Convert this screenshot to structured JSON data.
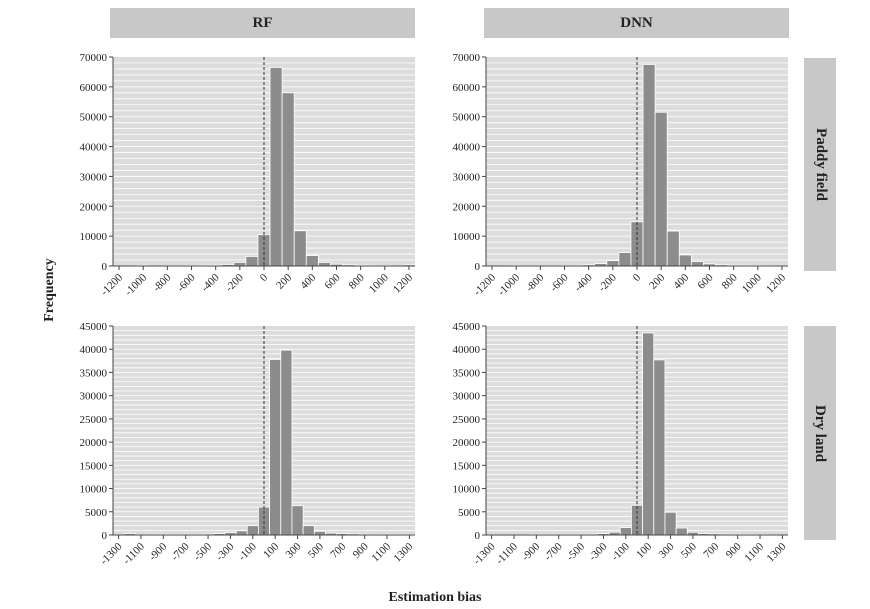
{
  "figure": {
    "ylabel": "Frequency",
    "xlabel": "Estimation bias",
    "col_labels": [
      "RF",
      "DNN"
    ],
    "row_labels": [
      "Paddy field",
      "Dry land"
    ]
  },
  "colors": {
    "bar": "#8c8c8c",
    "bar_edge": "#ffffff",
    "plot_bg": "#dcdcdc",
    "grid": "#ffffff",
    "strip": "#c8c8c8"
  },
  "chart_data": [
    {
      "type": "bar",
      "panel": "RF / Paddy field",
      "xlabel": "",
      "ylabel": "",
      "ylim": [
        0,
        70000
      ],
      "yticks": [
        0,
        10000,
        20000,
        30000,
        40000,
        50000,
        60000,
        70000
      ],
      "xlim": [
        -1250,
        1250
      ],
      "xticks": [
        -1200,
        -1000,
        -800,
        -600,
        -400,
        -200,
        0,
        200,
        400,
        600,
        800,
        1000,
        1200
      ],
      "bin_width": 100,
      "bins": [
        -1250,
        -1150,
        -1050,
        -950,
        -850,
        -750,
        -650,
        -550,
        -450,
        -350,
        -250,
        -150,
        -50,
        50,
        150,
        250,
        350,
        450,
        550,
        650,
        750,
        850,
        950,
        1050,
        1150
      ],
      "values": [
        50,
        100,
        250,
        100,
        150,
        150,
        200,
        250,
        300,
        500,
        1200,
        3200,
        10500,
        66500,
        58000,
        11800,
        3500,
        1200,
        600,
        400,
        300,
        250,
        200,
        100,
        400
      ],
      "reference_line_x": 0,
      "grid": true
    },
    {
      "type": "bar",
      "panel": "DNN / Paddy field",
      "xlabel": "",
      "ylabel": "",
      "ylim": [
        0,
        70000
      ],
      "yticks": [
        0,
        10000,
        20000,
        30000,
        40000,
        50000,
        60000,
        70000
      ],
      "xlim": [
        -1250,
        1250
      ],
      "xticks": [
        -1200,
        -1000,
        -800,
        -600,
        -400,
        -200,
        0,
        200,
        400,
        600,
        800,
        1000,
        1200
      ],
      "bin_width": 100,
      "bins": [
        -1250,
        -1150,
        -1050,
        -950,
        -850,
        -750,
        -650,
        -550,
        -450,
        -350,
        -250,
        -150,
        -50,
        50,
        150,
        250,
        350,
        450,
        550,
        650,
        750,
        850,
        950,
        1050,
        1150
      ],
      "values": [
        50,
        100,
        200,
        150,
        150,
        150,
        200,
        250,
        400,
        800,
        1800,
        4500,
        14800,
        67500,
        51500,
        11700,
        3700,
        1500,
        700,
        400,
        300,
        250,
        200,
        150,
        100
      ],
      "reference_line_x": 0,
      "grid": true
    },
    {
      "type": "bar",
      "panel": "RF / Dry land",
      "xlabel": "",
      "ylabel": "",
      "ylim": [
        0,
        45000
      ],
      "yticks": [
        0,
        5000,
        10000,
        15000,
        20000,
        25000,
        30000,
        35000,
        40000,
        45000
      ],
      "xlim": [
        -1350,
        1350
      ],
      "xticks": [
        -1300,
        -1100,
        -900,
        -700,
        -500,
        -300,
        -100,
        100,
        300,
        500,
        700,
        900,
        1100,
        1300
      ],
      "bin_width": 100,
      "bins": [
        -1350,
        -1250,
        -1150,
        -1050,
        -950,
        -850,
        -750,
        -650,
        -550,
        -450,
        -350,
        -250,
        -150,
        -50,
        50,
        150,
        250,
        350,
        450,
        550,
        650,
        750,
        850,
        950,
        1050,
        1150,
        1250
      ],
      "values": [
        50,
        300,
        100,
        200,
        150,
        150,
        150,
        150,
        200,
        300,
        500,
        900,
        2000,
        6000,
        37800,
        39800,
        6300,
        2000,
        800,
        400,
        300,
        250,
        200,
        150,
        150,
        150,
        100
      ],
      "reference_line_x": 0,
      "grid": true
    },
    {
      "type": "bar",
      "panel": "DNN / Dry land",
      "xlabel": "",
      "ylabel": "",
      "ylim": [
        0,
        45000
      ],
      "yticks": [
        0,
        5000,
        10000,
        15000,
        20000,
        25000,
        30000,
        35000,
        40000,
        45000
      ],
      "xlim": [
        -1350,
        1350
      ],
      "xticks": [
        -1300,
        -1100,
        -900,
        -700,
        -500,
        -300,
        -100,
        100,
        300,
        500,
        700,
        900,
        1100,
        1300
      ],
      "bin_width": 100,
      "bins": [
        -1350,
        -1250,
        -1150,
        -1050,
        -950,
        -850,
        -750,
        -650,
        -550,
        -450,
        -350,
        -250,
        -150,
        -50,
        50,
        150,
        250,
        350,
        450,
        550,
        650,
        750,
        850,
        950,
        1050,
        1150,
        1250
      ],
      "values": [
        50,
        50,
        50,
        100,
        150,
        150,
        150,
        150,
        150,
        200,
        300,
        600,
        1600,
        6400,
        43500,
        37700,
        4900,
        1500,
        600,
        300,
        250,
        200,
        150,
        150,
        100,
        100,
        50
      ],
      "reference_line_x": 0,
      "grid": true
    }
  ]
}
